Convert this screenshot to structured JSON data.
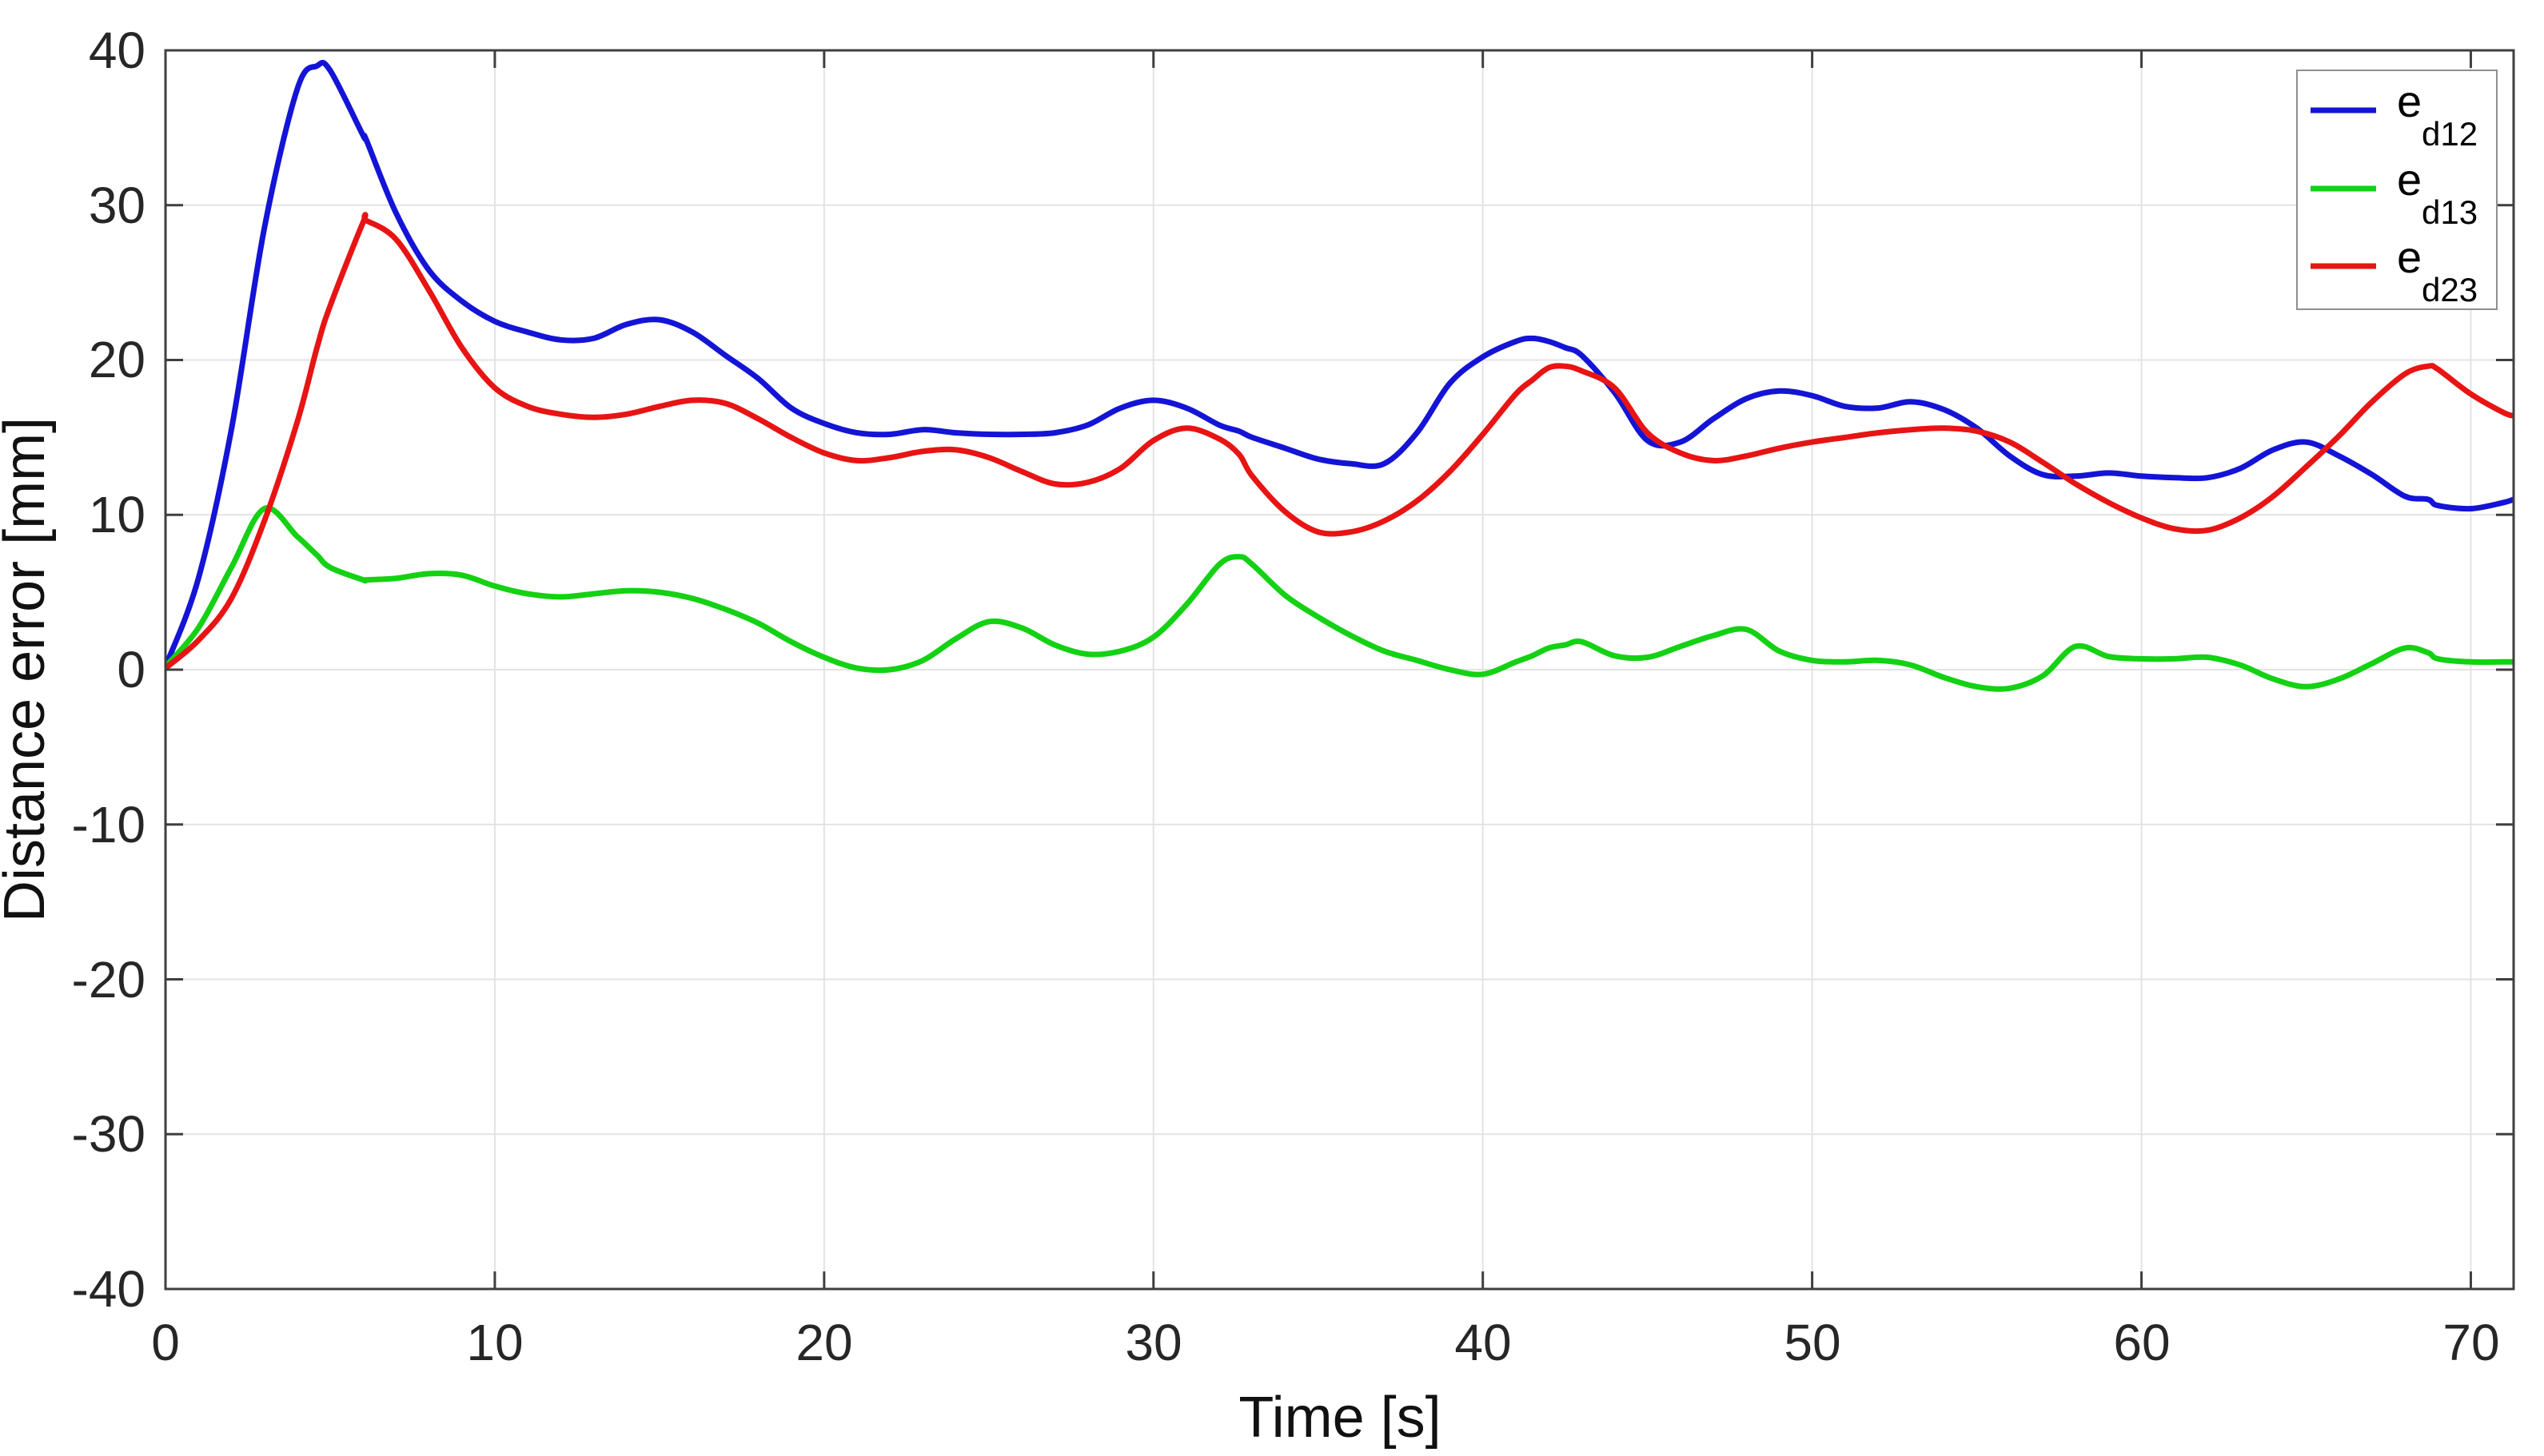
{
  "figure": {
    "background": "#ffffff",
    "grid_color": "#e3e3e3",
    "axis_color": "#3f3f3f",
    "tick_label_color": "#262626"
  },
  "axes": {
    "x_tick_labels": [
      "0",
      "10",
      "20",
      "30",
      "40",
      "50",
      "60",
      "70"
    ],
    "y_tick_labels": [
      "40",
      "30",
      "20",
      "10",
      "0",
      "-10",
      "-20",
      "-30",
      "-40"
    ]
  },
  "legend": {
    "position": "northeast",
    "border_color": "#8f8f8f",
    "items": [
      {
        "base": "e",
        "sub": "d12",
        "color": "#1414d6"
      },
      {
        "base": "e",
        "sub": "d13",
        "color": "#14d114"
      },
      {
        "base": "e",
        "sub": "d23",
        "color": "#e81414"
      }
    ]
  },
  "chart_data": {
    "type": "line",
    "title": "",
    "xlabel": "Time [s]",
    "ylabel": "Distance error [mm]",
    "xlim": [
      0,
      71.3
    ],
    "ylim": [
      -40,
      40
    ],
    "x_ticks": [
      0,
      10,
      20,
      30,
      40,
      50,
      60,
      70
    ],
    "y_ticks": [
      -40,
      -30,
      -20,
      -10,
      0,
      10,
      20,
      30,
      40
    ],
    "grid": true,
    "legend_position": "northeast",
    "x": [
      0,
      1,
      2,
      3,
      4,
      4.6,
      5,
      6,
      6.1,
      7,
      8,
      9,
      10,
      11,
      12,
      13,
      14,
      15,
      16,
      17,
      18,
      19,
      20,
      21,
      22,
      23,
      24,
      25,
      26,
      27,
      28,
      29,
      30,
      31,
      32,
      32.6,
      33,
      34,
      35,
      36,
      37,
      38,
      39,
      40,
      41,
      41.5,
      42,
      42.5,
      43,
      44,
      45,
      46,
      47,
      48,
      49,
      50,
      51,
      52,
      53,
      54,
      55,
      56,
      57,
      58,
      59,
      60,
      61,
      62,
      63,
      64,
      65,
      66,
      67,
      68,
      68.7,
      69,
      70,
      71,
      71.3
    ],
    "series": [
      {
        "name": "e_d12",
        "color": "#1414d6",
        "values": [
          0.2,
          5.9,
          15.5,
          28.5,
          37.5,
          39.0,
          38.7,
          34.5,
          34.2,
          29.5,
          25.8,
          23.8,
          22.5,
          21.8,
          21.3,
          21.4,
          22.3,
          22.6,
          21.8,
          20.3,
          18.8,
          16.9,
          15.9,
          15.3,
          15.2,
          15.5,
          15.3,
          15.2,
          15.2,
          15.3,
          15.8,
          16.9,
          17.4,
          16.9,
          15.8,
          15.4,
          15.0,
          14.3,
          13.6,
          13.3,
          13.3,
          15.3,
          18.5,
          20.2,
          21.2,
          21.4,
          21.2,
          20.8,
          20.3,
          17.9,
          14.8,
          14.7,
          16.2,
          17.5,
          18.0,
          17.7,
          17.0,
          16.9,
          17.3,
          16.8,
          15.6,
          13.8,
          12.6,
          12.5,
          12.7,
          12.5,
          12.4,
          12.4,
          13.0,
          14.2,
          14.7,
          13.8,
          12.6,
          11.2,
          11.0,
          10.6,
          10.4,
          10.8,
          11.0
        ]
      },
      {
        "name": "e_d13",
        "color": "#14d114",
        "values": [
          0.2,
          2.7,
          6.6,
          10.4,
          8.6,
          7.4,
          6.6,
          5.8,
          5.8,
          5.9,
          6.2,
          6.1,
          5.4,
          4.9,
          4.7,
          4.9,
          5.1,
          5.0,
          4.6,
          3.9,
          3.0,
          1.8,
          0.8,
          0.1,
          0.0,
          0.6,
          2.0,
          3.1,
          2.7,
          1.6,
          1.0,
          1.2,
          2.1,
          4.2,
          6.8,
          7.3,
          6.8,
          4.8,
          3.4,
          2.2,
          1.2,
          0.6,
          0.0,
          -0.3,
          0.5,
          0.9,
          1.4,
          1.6,
          1.8,
          0.9,
          0.8,
          1.5,
          2.2,
          2.6,
          1.2,
          0.6,
          0.5,
          0.6,
          0.3,
          -0.5,
          -1.1,
          -1.2,
          -0.4,
          1.5,
          0.85,
          0.7,
          0.7,
          0.8,
          0.3,
          -0.6,
          -1.1,
          -0.6,
          0.4,
          1.4,
          1.1,
          0.7,
          0.5,
          0.5,
          0.5
        ]
      },
      {
        "name": "e_d23",
        "color": "#e81414",
        "values": [
          0.1,
          1.9,
          4.6,
          9.6,
          16.0,
          20.8,
          23.5,
          28.9,
          29.0,
          27.8,
          24.5,
          20.8,
          18.2,
          17.0,
          16.5,
          16.3,
          16.5,
          17.0,
          17.4,
          17.2,
          16.2,
          15.0,
          14.0,
          13.5,
          13.7,
          14.1,
          14.2,
          13.7,
          12.8,
          12.0,
          12.1,
          13.0,
          14.8,
          15.6,
          14.9,
          13.9,
          12.5,
          10.2,
          8.9,
          8.9,
          9.6,
          10.9,
          12.8,
          15.2,
          17.8,
          18.7,
          19.5,
          19.6,
          19.3,
          18.2,
          15.3,
          14.0,
          13.5,
          13.8,
          14.3,
          14.7,
          15.0,
          15.3,
          15.5,
          15.6,
          15.4,
          14.7,
          13.4,
          12.0,
          10.8,
          9.8,
          9.1,
          9.0,
          9.8,
          11.2,
          13.1,
          15.1,
          17.3,
          19.1,
          19.6,
          19.4,
          17.8,
          16.6,
          16.4
        ]
      }
    ]
  }
}
